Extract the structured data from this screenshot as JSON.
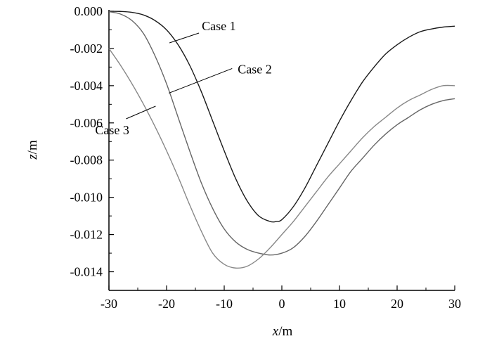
{
  "chart_data": {
    "type": "line",
    "title": "",
    "xlabel": {
      "var": "x",
      "unit": "/m"
    },
    "ylabel": {
      "var": "z",
      "unit": "/m"
    },
    "xlim": [
      -30,
      30
    ],
    "ylim": [
      -0.015,
      0.0
    ],
    "xticks": [
      {
        "value": -30,
        "label": "-30"
      },
      {
        "value": -20,
        "label": "-20"
      },
      {
        "value": -10,
        "label": "-10"
      },
      {
        "value": 0,
        "label": "0"
      },
      {
        "value": 10,
        "label": "10"
      },
      {
        "value": 20,
        "label": "20"
      },
      {
        "value": 30,
        "label": "30"
      }
    ],
    "yticks": [
      {
        "value": 0.0,
        "label": "0.000"
      },
      {
        "value": -0.002,
        "label": "-0.002"
      },
      {
        "value": -0.004,
        "label": "-0.004"
      },
      {
        "value": -0.006,
        "label": "-0.006"
      },
      {
        "value": -0.008,
        "label": "-0.008"
      },
      {
        "value": -0.01,
        "label": "-0.010"
      },
      {
        "value": -0.012,
        "label": "-0.012"
      },
      {
        "value": -0.014,
        "label": "-0.014"
      }
    ],
    "grid": false,
    "series": [
      {
        "name": "Case 1",
        "color": "#1a1a1a",
        "x": [
          -30,
          -28,
          -26,
          -24,
          -22,
          -20,
          -18,
          -16,
          -14,
          -12,
          -10,
          -8,
          -6,
          -4,
          -2,
          -1,
          0,
          2,
          4,
          6,
          8,
          10,
          12,
          14,
          16,
          18,
          20,
          22,
          24,
          26,
          28,
          30
        ],
        "y": [
          0.0,
          -1e-05,
          -6e-05,
          -0.0002,
          -0.0005,
          -0.001,
          -0.0018,
          -0.0029,
          -0.0043,
          -0.0059,
          -0.0075,
          -0.009,
          -0.0102,
          -0.011,
          -0.0113,
          -0.0113,
          -0.0112,
          -0.0105,
          -0.0095,
          -0.0083,
          -0.0071,
          -0.0059,
          -0.0048,
          -0.0038,
          -0.003,
          -0.0023,
          -0.0018,
          -0.0014,
          -0.0011,
          -0.00095,
          -0.00085,
          -0.0008
        ],
        "label": {
          "text": "Case 1",
          "anchor_x": -19.5,
          "anchor_y": -0.0017
        }
      },
      {
        "name": "Case 2",
        "color": "#666666",
        "x": [
          -30,
          -28,
          -26,
          -24,
          -22,
          -20,
          -18,
          -16,
          -14,
          -12,
          -10,
          -8,
          -6,
          -4,
          -2,
          0,
          2,
          4,
          6,
          8,
          10,
          12,
          14,
          16,
          18,
          20,
          22,
          24,
          26,
          28,
          30
        ],
        "y": [
          -2e-05,
          -0.00015,
          -0.0005,
          -0.0012,
          -0.0024,
          -0.0039,
          -0.0057,
          -0.0075,
          -0.0092,
          -0.0106,
          -0.0117,
          -0.0124,
          -0.0128,
          -0.013,
          -0.0131,
          -0.013,
          -0.0127,
          -0.0121,
          -0.0113,
          -0.0104,
          -0.0095,
          -0.0086,
          -0.0079,
          -0.0072,
          -0.0066,
          -0.0061,
          -0.0057,
          -0.0053,
          -0.005,
          -0.0048,
          -0.0047
        ],
        "label": {
          "text": "Case 2",
          "anchor_x": -19.6,
          "anchor_y": -0.0044
        }
      },
      {
        "name": "Case 3",
        "color": "#888888",
        "x": [
          -30,
          -28,
          -26,
          -24,
          -22,
          -20,
          -18,
          -16,
          -14,
          -12,
          -10,
          -8,
          -6,
          -4,
          -2,
          0,
          2,
          4,
          6,
          8,
          10,
          12,
          14,
          16,
          18,
          20,
          22,
          24,
          26,
          28,
          30
        ],
        "y": [
          -0.002,
          -0.0029,
          -0.0039,
          -0.005,
          -0.0062,
          -0.0075,
          -0.0089,
          -0.0104,
          -0.0118,
          -0.013,
          -0.0136,
          -0.0138,
          -0.0137,
          -0.0133,
          -0.0127,
          -0.012,
          -0.0113,
          -0.0105,
          -0.0097,
          -0.0089,
          -0.0082,
          -0.0075,
          -0.0068,
          -0.0062,
          -0.0057,
          -0.0052,
          -0.0048,
          -0.0045,
          -0.0042,
          -0.004,
          -0.004
        ],
        "label": {
          "text": "Case 3",
          "anchor_x": -21.9,
          "anchor_y": -0.0051
        }
      }
    ]
  }
}
